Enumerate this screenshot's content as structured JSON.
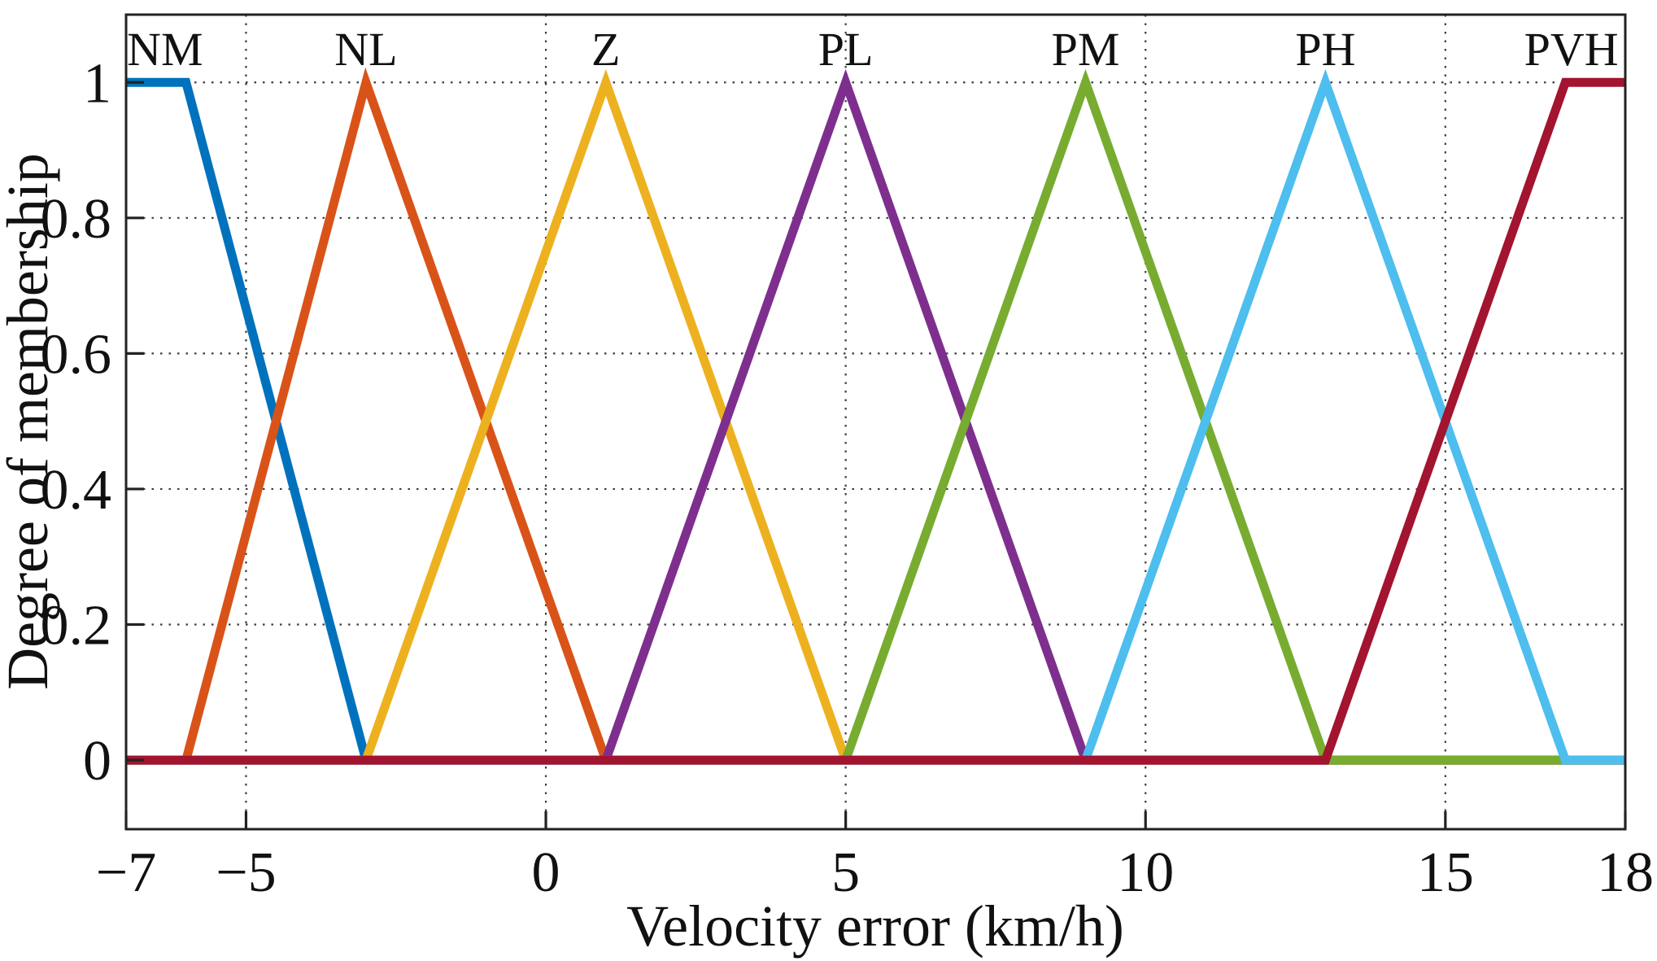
{
  "chart_data": {
    "type": "line",
    "title": "",
    "description": "Fuzzy membership functions of velocity error",
    "xlabel": "Velocity error (km/h)",
    "ylabel": "Degree of membership",
    "xlim": [
      -7,
      18
    ],
    "ylim": [
      -0.102,
      1.1
    ],
    "grid": true,
    "legend": false,
    "x_ticks": [
      -7,
      -5,
      0,
      5,
      10,
      15,
      18
    ],
    "x_tick_labels": [
      "−7",
      "−5",
      "0",
      "5",
      "10",
      "15",
      "18"
    ],
    "y_ticks": [
      0,
      0.2,
      0.4,
      0.6,
      0.8,
      1
    ],
    "y_tick_labels": [
      "0",
      "0.2",
      "0.4",
      "0.6",
      "0.8",
      "1"
    ],
    "grid_x": [
      -5,
      0,
      5,
      10,
      15
    ],
    "axis_color": "#222222",
    "grid_color": "#3d3d3d",
    "line_width": 11,
    "series": [
      {
        "name": "NM",
        "color": "#0072BD",
        "shape": "trapezoid",
        "points": [
          [
            -7,
            1
          ],
          [
            -6,
            1
          ],
          [
            -3,
            0
          ],
          [
            18,
            0
          ]
        ],
        "label_x": -6.35
      },
      {
        "name": "NL",
        "color": "#D95319",
        "shape": "triangle",
        "points": [
          [
            -7,
            0
          ],
          [
            -6,
            0
          ],
          [
            -3,
            1
          ],
          [
            1,
            0
          ],
          [
            18,
            0
          ]
        ],
        "label_x": -3
      },
      {
        "name": "Z",
        "color": "#EDB120",
        "shape": "triangle",
        "points": [
          [
            -7,
            0
          ],
          [
            -3,
            0
          ],
          [
            1,
            1
          ],
          [
            5,
            0
          ],
          [
            18,
            0
          ]
        ],
        "label_x": 1
      },
      {
        "name": "PL",
        "color": "#7E2F8E",
        "shape": "triangle",
        "points": [
          [
            -7,
            0
          ],
          [
            1,
            0
          ],
          [
            5,
            1
          ],
          [
            9,
            0
          ],
          [
            18,
            0
          ]
        ],
        "label_x": 5
      },
      {
        "name": "PM",
        "color": "#77AC30",
        "shape": "triangle",
        "points": [
          [
            -7,
            0
          ],
          [
            5,
            0
          ],
          [
            9,
            1
          ],
          [
            13,
            0
          ],
          [
            18,
            0
          ]
        ],
        "label_x": 9
      },
      {
        "name": "PH",
        "color": "#4DBEEE",
        "shape": "triangle",
        "points": [
          [
            -7,
            0
          ],
          [
            9,
            0
          ],
          [
            13,
            1
          ],
          [
            17,
            0
          ],
          [
            18,
            0
          ]
        ],
        "label_x": 13
      },
      {
        "name": "PVH",
        "color": "#A2142F",
        "shape": "trapezoid",
        "points": [
          [
            -7,
            0
          ],
          [
            13,
            0
          ],
          [
            17,
            1
          ],
          [
            18,
            1
          ]
        ],
        "label_x": 17.1
      }
    ]
  }
}
